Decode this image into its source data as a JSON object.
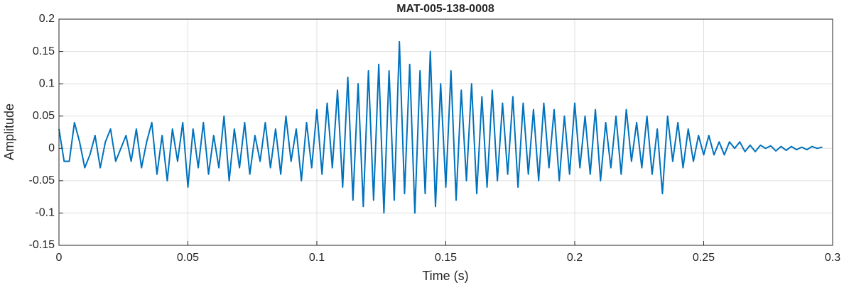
{
  "chart_data": {
    "type": "line",
    "title": "MAT-005-138-0008",
    "x_label": "Time (s)",
    "y_label": "Amplitude",
    "x": [
      0,
      0.002,
      0.004,
      0.006,
      0.008,
      0.01,
      0.012,
      0.014,
      0.016,
      0.018,
      0.02,
      0.022,
      0.024,
      0.026,
      0.028,
      0.03,
      0.032,
      0.034,
      0.036,
      0.038,
      0.04,
      0.042,
      0.044,
      0.046,
      0.048,
      0.05,
      0.052,
      0.054,
      0.056,
      0.058,
      0.06,
      0.062,
      0.064,
      0.066,
      0.068,
      0.07,
      0.072,
      0.074,
      0.076,
      0.078,
      0.08,
      0.082,
      0.084,
      0.086,
      0.088,
      0.09,
      0.092,
      0.094,
      0.096,
      0.098,
      0.1,
      0.102,
      0.104,
      0.106,
      0.108,
      0.11,
      0.112,
      0.114,
      0.116,
      0.118,
      0.12,
      0.122,
      0.124,
      0.126,
      0.128,
      0.13,
      0.132,
      0.134,
      0.136,
      0.138,
      0.14,
      0.142,
      0.144,
      0.146,
      0.148,
      0.15,
      0.152,
      0.154,
      0.156,
      0.158,
      0.16,
      0.162,
      0.164,
      0.166,
      0.168,
      0.17,
      0.172,
      0.174,
      0.176,
      0.178,
      0.18,
      0.182,
      0.184,
      0.186,
      0.188,
      0.19,
      0.192,
      0.194,
      0.196,
      0.198,
      0.2,
      0.202,
      0.204,
      0.206,
      0.208,
      0.21,
      0.212,
      0.214,
      0.216,
      0.218,
      0.22,
      0.222,
      0.224,
      0.226,
      0.228,
      0.23,
      0.232,
      0.234,
      0.236,
      0.238,
      0.24,
      0.242,
      0.244,
      0.246,
      0.248,
      0.25,
      0.252,
      0.254,
      0.256,
      0.258,
      0.26,
      0.262,
      0.264,
      0.266,
      0.268,
      0.27,
      0.272,
      0.274,
      0.276,
      0.278,
      0.28,
      0.282,
      0.284,
      0.286,
      0.288,
      0.29,
      0.292,
      0.294,
      0.296
    ],
    "series": [
      {
        "color": "#0072bd",
        "values": [
          0.03,
          -0.02,
          -0.02,
          0.04,
          0.01,
          -0.03,
          -0.01,
          0.02,
          -0.03,
          0.01,
          0.03,
          -0.02,
          0,
          0.02,
          -0.02,
          0.03,
          -0.03,
          0.01,
          0.04,
          -0.04,
          0.02,
          -0.05,
          0.03,
          -0.02,
          0.04,
          -0.06,
          0.03,
          -0.03,
          0.04,
          -0.04,
          0.02,
          -0.03,
          0.05,
          -0.05,
          0.03,
          -0.03,
          0.04,
          -0.04,
          0.02,
          -0.02,
          0.04,
          -0.03,
          0.03,
          -0.04,
          0.05,
          -0.02,
          0.03,
          -0.05,
          0.04,
          -0.03,
          0.06,
          -0.04,
          0.07,
          -0.03,
          0.09,
          -0.06,
          0.11,
          -0.08,
          0.1,
          -0.09,
          0.12,
          -0.08,
          0.13,
          -0.1,
          0.12,
          -0.08,
          0.165,
          -0.07,
          0.13,
          -0.1,
          0.12,
          -0.07,
          0.15,
          -0.09,
          0.1,
          -0.06,
          0.12,
          -0.08,
          0.09,
          -0.05,
          0.1,
          -0.07,
          0.08,
          -0.06,
          0.09,
          -0.05,
          0.07,
          -0.04,
          0.08,
          -0.06,
          0.07,
          -0.04,
          0.06,
          -0.05,
          0.07,
          -0.03,
          0.06,
          -0.05,
          0.05,
          -0.04,
          0.07,
          -0.03,
          0.05,
          -0.04,
          0.06,
          -0.05,
          0.04,
          -0.03,
          0.05,
          -0.04,
          0.06,
          -0.02,
          0.04,
          -0.03,
          0.05,
          -0.04,
          0.03,
          -0.07,
          0.05,
          -0.02,
          0.04,
          -0.03,
          0.03,
          -0.02,
          0.02,
          -0.01,
          0.02,
          -0.01,
          0.01,
          -0.01,
          0.01,
          0,
          0.01,
          -0.005,
          0.005,
          -0.005,
          0.005,
          0,
          0.004,
          -0.004,
          0.003,
          -0.003,
          0.003,
          -0.002,
          0.002,
          -0.002,
          0.003,
          0,
          0.002
        ]
      }
    ],
    "xlim": [
      0,
      0.3
    ],
    "xticks": [
      0,
      0.05,
      0.1,
      0.15,
      0.2,
      0.25,
      0.3
    ],
    "ylim": [
      -0.15,
      0.2
    ],
    "yticks": [
      -0.15,
      -0.1,
      -0.05,
      0,
      0.05,
      0.1,
      0.15,
      0.2
    ],
    "grid": true
  }
}
